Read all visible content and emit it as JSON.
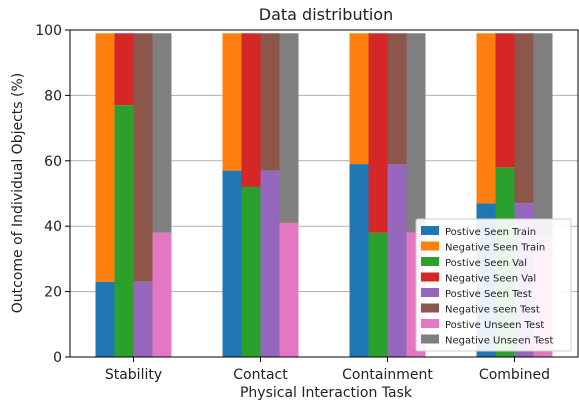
{
  "chart_data": {
    "type": "bar",
    "title": "Data distribution",
    "xlabel": "Physical Interaction Task",
    "ylabel": "Outcome of Individual Objects (%)",
    "ylim": [
      0,
      100
    ],
    "yticks": [
      0,
      20,
      40,
      60,
      80,
      100
    ],
    "grid": "y",
    "legend_position": "lower-right",
    "categories": [
      "Stability",
      "Contact",
      "Containment",
      "Combined"
    ],
    "series": [
      {
        "name": "Postive Seen Train",
        "color": "#1f77b4",
        "values": [
          23,
          57,
          59,
          47
        ]
      },
      {
        "name": "Negative Seen Train",
        "color": "#ff7f0e",
        "values": [
          76,
          42,
          40,
          52
        ]
      },
      {
        "name": "Postive Seen Val",
        "color": "#2ca02c",
        "values": [
          77,
          52,
          38,
          58
        ]
      },
      {
        "name": "Negative Seen Val",
        "color": "#d62728",
        "values": [
          22,
          47,
          61,
          41
        ]
      },
      {
        "name": "Postive Seen Test",
        "color": "#9467bd",
        "values": [
          23,
          57,
          59,
          47
        ]
      },
      {
        "name": "Negative seen Test",
        "color": "#8c564b",
        "values": [
          76,
          42,
          40,
          52
        ]
      },
      {
        "name": "Postive Unseen Test",
        "color": "#e377c2",
        "values": [
          38,
          41,
          38,
          37
        ]
      },
      {
        "name": "Negative Unseen Test",
        "color": "#7f7f7f",
        "values": [
          61,
          58,
          61,
          62
        ]
      }
    ],
    "bar_groups": [
      {
        "segments": [
          0,
          1
        ]
      },
      {
        "segments": [
          2,
          3
        ]
      },
      {
        "segments": [
          4,
          5
        ]
      },
      {
        "segments": [
          6,
          7
        ]
      }
    ]
  }
}
